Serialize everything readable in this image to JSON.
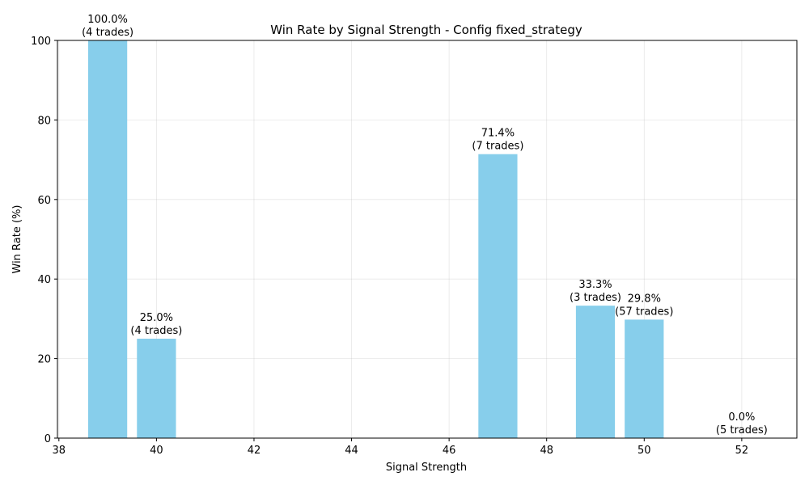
{
  "chart_data": {
    "type": "bar",
    "title": "Win Rate by Signal Strength - Config fixed_strategy",
    "xlabel": "Signal Strength",
    "ylabel": "Win Rate (%)",
    "xlim": [
      37.97,
      53.13
    ],
    "ylim": [
      0,
      100
    ],
    "xticks": [
      38,
      40,
      42,
      44,
      46,
      48,
      50,
      52
    ],
    "yticks": [
      0,
      20,
      40,
      60,
      80,
      100
    ],
    "grid": true,
    "bar_color": "#87CEEB",
    "bar_width": 0.8,
    "bars": [
      {
        "x": 39,
        "value": 100.0,
        "trades": 4,
        "label_pct": "100.0%",
        "label_trades": "(4 trades)"
      },
      {
        "x": 40,
        "value": 25.0,
        "trades": 4,
        "label_pct": "25.0%",
        "label_trades": "(4 trades)"
      },
      {
        "x": 47,
        "value": 71.4,
        "trades": 7,
        "label_pct": "71.4%",
        "label_trades": "(7 trades)"
      },
      {
        "x": 49,
        "value": 33.3,
        "trades": 3,
        "label_pct": "33.3%",
        "label_trades": "(3 trades)"
      },
      {
        "x": 50,
        "value": 29.8,
        "trades": 57,
        "label_pct": "29.8%",
        "label_trades": "(57 trades)"
      },
      {
        "x": 52,
        "value": 0.0,
        "trades": 5,
        "label_pct": "0.0%",
        "label_trades": "(5 trades)"
      }
    ]
  }
}
